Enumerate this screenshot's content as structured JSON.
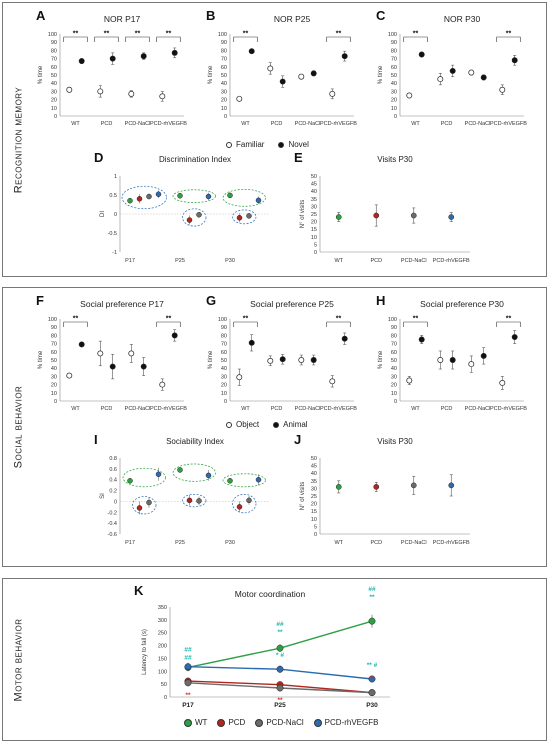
{
  "sections": {
    "recognition": "Recognition memory",
    "social": "Social behavior",
    "motor": "Motor behavior"
  },
  "colors": {
    "WT": "#2ea043",
    "PCD": "#b3261e",
    "PCD-NaCl": "#6b6b6b",
    "PCD-rhVEGFB": "#2b6cb0",
    "green_ellipse": "#3aa64a",
    "blue_ellipse": "#3a78c2",
    "teal": "#18b6a8",
    "red": "#d62828"
  },
  "legend_nor": {
    "open": "Familiar",
    "filled": "Novel"
  },
  "legend_social": {
    "open": "Object",
    "filled": "Animal"
  },
  "legend_motor": [
    "WT",
    "PCD",
    "PCD-NaCl",
    "PCD-rhVEGFB"
  ],
  "chart_data": [
    {
      "id": "A",
      "panel_label": "A",
      "type": "scatter",
      "title": "NOR P17",
      "ylabel": "% time",
      "ylim": [
        0,
        100
      ],
      "yticks": [
        0,
        10,
        20,
        30,
        40,
        50,
        60,
        70,
        80,
        90,
        100
      ],
      "categories": [
        "WT",
        "PCD",
        "PCD-NaCl",
        "PCD-rhVEGFB"
      ],
      "series": [
        {
          "name": "Familiar",
          "values": [
            32,
            30,
            27,
            24
          ],
          "err": [
            3,
            7,
            4,
            6
          ]
        },
        {
          "name": "Novel",
          "values": [
            67,
            70,
            73,
            77
          ],
          "err": [
            3,
            7,
            4,
            6
          ]
        }
      ],
      "sig": [
        {
          "cat": 0,
          "text": "**"
        },
        {
          "cat": 1,
          "text": "**"
        },
        {
          "cat": 2,
          "text": "**"
        },
        {
          "cat": 3,
          "text": "**"
        }
      ]
    },
    {
      "id": "B",
      "panel_label": "B",
      "type": "scatter",
      "title": "NOR P25",
      "ylabel": "% time",
      "ylim": [
        0,
        100
      ],
      "yticks": [
        0,
        10,
        20,
        30,
        40,
        50,
        60,
        70,
        80,
        90,
        100
      ],
      "categories": [
        "WT",
        "PCD",
        "PCD-NaCl",
        "PCD-rhVEGFB"
      ],
      "series": [
        {
          "name": "Familiar",
          "values": [
            21,
            58,
            48,
            27
          ],
          "err": [
            2,
            7,
            3,
            6
          ]
        },
        {
          "name": "Novel",
          "values": [
            79,
            42,
            52,
            73
          ],
          "err": [
            2,
            7,
            3,
            6
          ]
        }
      ],
      "sig": [
        {
          "cat": 0,
          "text": "**"
        },
        {
          "cat": 3,
          "text": "**"
        }
      ]
    },
    {
      "id": "C",
      "panel_label": "C",
      "type": "scatter",
      "title": "NOR P30",
      "ylabel": "% time",
      "ylim": [
        0,
        100
      ],
      "yticks": [
        0,
        10,
        20,
        30,
        40,
        50,
        60,
        70,
        80,
        90,
        100
      ],
      "categories": [
        "WT",
        "PCD",
        "PCD-NaCl",
        "PCD-rhVEGFB"
      ],
      "series": [
        {
          "name": "Familiar",
          "values": [
            25,
            45,
            53,
            32
          ],
          "err": [
            2,
            7,
            3,
            6
          ]
        },
        {
          "name": "Novel",
          "values": [
            75,
            55,
            47,
            68
          ],
          "err": [
            2,
            7,
            3,
            6
          ]
        }
      ],
      "sig": [
        {
          "cat": 0,
          "text": "**"
        },
        {
          "cat": 3,
          "text": "**"
        }
      ]
    },
    {
      "id": "D",
      "panel_label": "D",
      "type": "scatter",
      "title": "Discrimination Index",
      "ylabel": "DI",
      "ylim": [
        -1,
        1
      ],
      "yticks": [
        -1,
        -0.5,
        0,
        0.5,
        1
      ],
      "ytick_labels": [
        "-1",
        "-0.5",
        "0",
        "0.5",
        "1"
      ],
      "groups": [
        "P17",
        "P25",
        "P30"
      ],
      "points": [
        {
          "group": 0,
          "s": "WT",
          "v": 0.35,
          "e": 0.05
        },
        {
          "group": 0,
          "s": "PCD",
          "v": 0.4,
          "e": 0.12
        },
        {
          "group": 0,
          "s": "PCD-NaCl",
          "v": 0.46,
          "e": 0.06
        },
        {
          "group": 0,
          "s": "PCD-rhVEGFB",
          "v": 0.52,
          "e": 0.1
        },
        {
          "group": 1,
          "s": "WT",
          "v": 0.48,
          "e": 0.05
        },
        {
          "group": 1,
          "s": "PCD",
          "v": -0.16,
          "e": 0.12
        },
        {
          "group": 1,
          "s": "PCD-NaCl",
          "v": -0.02,
          "e": 0.05
        },
        {
          "group": 1,
          "s": "PCD-rhVEGFB",
          "v": 0.46,
          "e": 0.1
        },
        {
          "group": 2,
          "s": "WT",
          "v": 0.49,
          "e": 0.05
        },
        {
          "group": 2,
          "s": "PCD",
          "v": -0.1,
          "e": 0.12
        },
        {
          "group": 2,
          "s": "PCD-NaCl",
          "v": -0.05,
          "e": 0.05
        },
        {
          "group": 2,
          "s": "PCD-rhVEGFB",
          "v": 0.36,
          "e": 0.1
        }
      ]
    },
    {
      "id": "E",
      "panel_label": "E",
      "type": "scatter",
      "title": "Visits P30",
      "ylabel": "N° of visits",
      "ylim": [
        0,
        50
      ],
      "yticks": [
        0,
        5,
        10,
        15,
        20,
        25,
        30,
        35,
        40,
        45,
        50
      ],
      "categories": [
        "WT",
        "PCD",
        "PCD-NaCl",
        "PCD-rhVEGFB"
      ],
      "points": [
        {
          "s": "WT",
          "v": 23,
          "e": 3
        },
        {
          "s": "PCD",
          "v": 24,
          "e": 7
        },
        {
          "s": "PCD-NaCl",
          "v": 24,
          "e": 5
        },
        {
          "s": "PCD-rhVEGFB",
          "v": 23,
          "e": 3
        }
      ]
    },
    {
      "id": "F",
      "panel_label": "F",
      "type": "scatter",
      "title": "Social preference P17",
      "ylabel": "% time",
      "ylim": [
        0,
        100
      ],
      "yticks": [
        0,
        10,
        20,
        30,
        40,
        50,
        60,
        70,
        80,
        90,
        100
      ],
      "categories": [
        "WT",
        "PCD",
        "PCD-NaCl",
        "PCD-rhVEGFB"
      ],
      "series": [
        {
          "name": "Object",
          "values": [
            31,
            58,
            58,
            20
          ],
          "err": [
            2,
            15,
            11,
            7
          ]
        },
        {
          "name": "Animal",
          "values": [
            69,
            42,
            42,
            80
          ],
          "err": [
            2,
            15,
            11,
            7
          ]
        }
      ],
      "sig": [
        {
          "cat": 0,
          "text": "**"
        },
        {
          "cat": 3,
          "text": "**"
        }
      ]
    },
    {
      "id": "G",
      "panel_label": "G",
      "type": "scatter",
      "title": "Social preference P25",
      "ylabel": "% time",
      "ylim": [
        0,
        100
      ],
      "yticks": [
        0,
        10,
        20,
        30,
        40,
        50,
        60,
        70,
        80,
        90,
        100
      ],
      "categories": [
        "WT",
        "PCD",
        "PCD-NaCl",
        "PCD-rhVEGFB"
      ],
      "series": [
        {
          "name": "Object",
          "values": [
            29,
            49,
            50,
            24
          ],
          "err": [
            10,
            6,
            6,
            7
          ]
        },
        {
          "name": "Animal",
          "values": [
            71,
            51,
            50,
            76
          ],
          "err": [
            10,
            6,
            6,
            7
          ]
        }
      ],
      "sig": [
        {
          "cat": 0,
          "text": "**"
        },
        {
          "cat": 3,
          "text": "**"
        }
      ]
    },
    {
      "id": "H",
      "panel_label": "H",
      "type": "scatter",
      "title": "Social preference P30",
      "ylabel": "% time",
      "ylim": [
        0,
        100
      ],
      "yticks": [
        0,
        10,
        20,
        30,
        40,
        50,
        60,
        70,
        80,
        90,
        100
      ],
      "categories": [
        "WT",
        "PCD",
        "PCD-NaCl",
        "PCD-rhVEGFB"
      ],
      "series": [
        {
          "name": "Object",
          "values": [
            25,
            50,
            45,
            22
          ],
          "err": [
            5,
            11,
            10,
            8
          ]
        },
        {
          "name": "Animal",
          "values": [
            75,
            50,
            55,
            78
          ],
          "err": [
            5,
            11,
            10,
            8
          ]
        }
      ],
      "sig": [
        {
          "cat": 0,
          "text": "**"
        },
        {
          "cat": 3,
          "text": "**"
        }
      ]
    },
    {
      "id": "I",
      "panel_label": "I",
      "type": "scatter",
      "title": "Sociability Index",
      "ylabel": "SI",
      "ylim": [
        -0.6,
        0.8
      ],
      "yticks": [
        -0.6,
        -0.4,
        -0.2,
        0,
        0.2,
        0.4,
        0.6,
        0.8
      ],
      "ytick_labels": [
        "-0.6",
        "-0.4",
        "-0.2",
        "0",
        "0.2",
        "0.4",
        "0.6",
        "0.8"
      ],
      "groups": [
        "P17",
        "P25",
        "P30"
      ],
      "points": [
        {
          "group": 0,
          "s": "WT",
          "v": 0.38,
          "e": 0.05
        },
        {
          "group": 0,
          "s": "PCD",
          "v": -0.12,
          "e": 0.12
        },
        {
          "group": 0,
          "s": "PCD-NaCl",
          "v": -0.02,
          "e": 0.1
        },
        {
          "group": 0,
          "s": "PCD-rhVEGFB",
          "v": 0.5,
          "e": 0.12
        },
        {
          "group": 1,
          "s": "WT",
          "v": 0.58,
          "e": 0.05
        },
        {
          "group": 1,
          "s": "PCD",
          "v": 0.02,
          "e": 0.1
        },
        {
          "group": 1,
          "s": "PCD-NaCl",
          "v": 0.01,
          "e": 0.08
        },
        {
          "group": 1,
          "s": "PCD-rhVEGFB",
          "v": 0.48,
          "e": 0.1
        },
        {
          "group": 2,
          "s": "WT",
          "v": 0.38,
          "e": 0.05
        },
        {
          "group": 2,
          "s": "PCD",
          "v": -0.1,
          "e": 0.1
        },
        {
          "group": 2,
          "s": "PCD-NaCl",
          "v": 0.02,
          "e": 0.08
        },
        {
          "group": 2,
          "s": "PCD-rhVEGFB",
          "v": 0.4,
          "e": 0.1
        }
      ]
    },
    {
      "id": "J",
      "panel_label": "J",
      "type": "scatter",
      "title": "Visits P30",
      "ylabel": "N° of visits",
      "ylim": [
        0,
        50
      ],
      "yticks": [
        0,
        5,
        10,
        15,
        20,
        25,
        30,
        35,
        40,
        45,
        50
      ],
      "categories": [
        "WT",
        "PCD",
        "PCD-NaCl",
        "PCD-rhVEGFB"
      ],
      "points": [
        {
          "s": "WT",
          "v": 31,
          "e": 4
        },
        {
          "s": "PCD",
          "v": 31,
          "e": 3
        },
        {
          "s": "PCD-NaCl",
          "v": 32,
          "e": 6
        },
        {
          "s": "PCD-rhVEGFB",
          "v": 32,
          "e": 7
        }
      ]
    },
    {
      "id": "K",
      "panel_label": "K",
      "type": "line",
      "title": "Motor coordination",
      "ylabel": "Latency to fall (s)",
      "ylim": [
        0,
        350
      ],
      "yticks": [
        0,
        50,
        100,
        150,
        200,
        250,
        300,
        350
      ],
      "categories": [
        "P17",
        "P25",
        "P30"
      ],
      "series": [
        {
          "name": "WT",
          "values": [
            115,
            190,
            295
          ],
          "err": [
            15,
            15,
            25
          ]
        },
        {
          "name": "PCD",
          "values": [
            62,
            48,
            17
          ],
          "err": [
            10,
            10,
            5
          ]
        },
        {
          "name": "PCD-NaCl",
          "values": [
            55,
            35,
            17
          ],
          "err": [
            10,
            10,
            5
          ]
        },
        {
          "name": "PCD-rhVEGFB",
          "values": [
            118,
            108,
            70
          ],
          "err": [
            15,
            15,
            10
          ]
        }
      ],
      "annotations": [
        {
          "cat": 0,
          "v": 115,
          "text": "##",
          "color": "teal",
          "dy": -16
        },
        {
          "cat": 0,
          "v": 115,
          "text": "##",
          "color": "teal",
          "dy": -8
        },
        {
          "cat": 1,
          "v": 190,
          "text": "##",
          "color": "teal",
          "dy": -22
        },
        {
          "cat": 1,
          "v": 190,
          "text": "**",
          "color": "teal",
          "dy": -14
        },
        {
          "cat": 2,
          "v": 295,
          "text": "##",
          "color": "teal",
          "dy": -30
        },
        {
          "cat": 2,
          "v": 295,
          "text": "**",
          "color": "teal",
          "dy": -22
        },
        {
          "cat": 1,
          "v": 108,
          "text": "* #",
          "color": "teal",
          "dy": -12
        },
        {
          "cat": 2,
          "v": 70,
          "text": "** #",
          "color": "teal",
          "dy": -12
        },
        {
          "cat": 0,
          "v": 55,
          "text": "**",
          "color": "red",
          "dy": 14
        },
        {
          "cat": 1,
          "v": 35,
          "text": "**",
          "color": "red",
          "dy": 14
        },
        {
          "cat": 2,
          "v": 17,
          "text": "**",
          "color": "red",
          "dy": -12
        }
      ]
    }
  ]
}
